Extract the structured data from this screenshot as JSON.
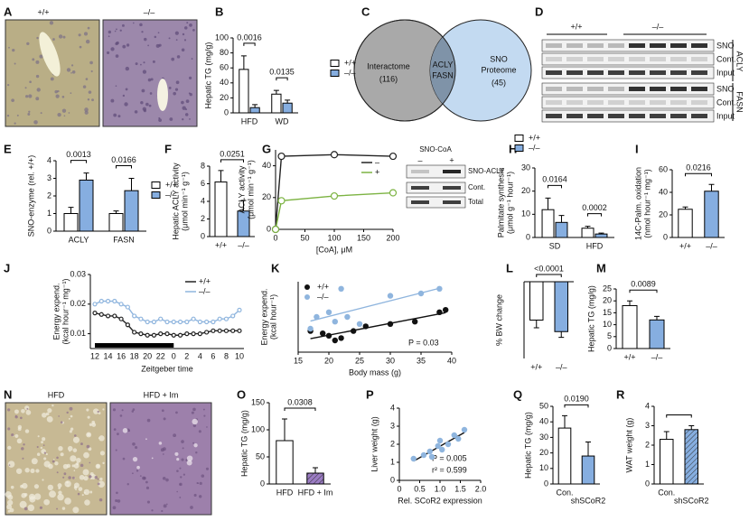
{
  "panel_A": {
    "letter": "A",
    "labels": [
      "+/+",
      "–/–"
    ]
  },
  "panel_C": {
    "letter": "C",
    "left": "Interactome",
    "left_count": "(116)",
    "overlap": [
      "ACLY",
      "FASN"
    ],
    "right": [
      "SNO",
      "Proteome"
    ],
    "right_count": "(45)"
  },
  "panel_D": {
    "letter": "D",
    "groups": [
      "+/+",
      "–/–"
    ],
    "rows": [
      "SNO",
      "Cont.",
      "Input",
      "SNO",
      "Cont.",
      "Input"
    ],
    "proteins": [
      "ACLY",
      "FASN"
    ]
  },
  "panel_G_blot": {
    "title": "SNO-CoA",
    "lanes": [
      "–",
      "+"
    ],
    "rows": [
      "SNO-ACLY",
      "Cont.",
      "Total"
    ]
  },
  "panel_N": {
    "letter": "N",
    "labels": [
      "HFD",
      "HFD + Im"
    ]
  },
  "chart_data": [
    {
      "type": "bar",
      "letter": "B",
      "ylabel": [
        "Hepatic TG (mg/g)"
      ],
      "categories": [
        "HFD",
        "WD"
      ],
      "series": [
        {
          "name": "+/+",
          "color": "#ffffff",
          "values": [
            58,
            25
          ],
          "errors": [
            18,
            5
          ]
        },
        {
          "name": "–/–",
          "color": "#86aee0",
          "values": [
            7,
            13
          ],
          "errors": [
            4,
            4
          ]
        }
      ],
      "ylim": [
        0,
        100
      ],
      "yticks": [
        0,
        20,
        40,
        60,
        80,
        100
      ],
      "pvalues": [
        "0.0016",
        "0.0135"
      ]
    },
    {
      "type": "bar",
      "letter": "E",
      "ylabel": [
        "SNO-enzyme (rel. +/+)"
      ],
      "categories": [
        "ACLY",
        "FASN"
      ],
      "series": [
        {
          "name": "+/+",
          "color": "#ffffff",
          "values": [
            1.0,
            1.0
          ],
          "errors": [
            0.35,
            0.15
          ]
        },
        {
          "name": "–/–",
          "color": "#86aee0",
          "values": [
            2.9,
            2.3
          ],
          "errors": [
            0.4,
            0.7
          ]
        }
      ],
      "ylim": [
        0,
        4
      ],
      "yticks": [
        0,
        1,
        2,
        3,
        4
      ],
      "pvalues": [
        "0.0013",
        "0.0166"
      ]
    },
    {
      "type": "bar",
      "letter": "F",
      "ylabel": [
        "Hepatic ACLY activity",
        "(μmol min⁻¹ g⁻¹)"
      ],
      "categories": [
        "+/+",
        "–/–"
      ],
      "values": [
        6.2,
        2.9
      ],
      "errors": [
        1.3,
        1.2
      ],
      "colors": [
        "#ffffff",
        "#86aee0"
      ],
      "ylim": [
        0,
        8
      ],
      "yticks": [
        0,
        2,
        4,
        6,
        8
      ],
      "pvalue": "0.0251"
    },
    {
      "type": "line",
      "letter": "G",
      "ylabel": [
        "ACLY activity",
        "(μmol min⁻¹ g⁻¹)"
      ],
      "xlabel": "[CoA], μM",
      "x": [
        0,
        10,
        100,
        200
      ],
      "series": [
        {
          "name": "–",
          "color": "#222222",
          "values": [
            0,
            46,
            47,
            46
          ]
        },
        {
          "name": "+",
          "color": "#7cb342",
          "values": [
            0,
            18,
            21,
            23
          ]
        }
      ],
      "xlim": [
        0,
        200
      ],
      "xticks": [
        0,
        50,
        100,
        150,
        200
      ],
      "ylim": [
        0,
        50
      ],
      "yticks": [
        0,
        20,
        40
      ]
    },
    {
      "type": "bar",
      "letter": "H",
      "ylabel": [
        "Palmitate synthesis",
        "(μmol g⁻¹ hour⁻¹)"
      ],
      "categories": [
        "SD",
        "HFD"
      ],
      "series": [
        {
          "name": "+/+",
          "color": "#ffffff",
          "values": [
            12,
            4
          ],
          "errors": [
            5,
            0.8
          ]
        },
        {
          "name": "–/–",
          "color": "#86aee0",
          "values": [
            6.5,
            1.5
          ],
          "errors": [
            3,
            0.4
          ]
        }
      ],
      "ylim": [
        0,
        30
      ],
      "yticks": [
        0,
        10,
        20,
        30
      ],
      "pvalues": [
        "0.0164",
        "0.0002"
      ]
    },
    {
      "type": "bar",
      "letter": "I",
      "ylabel": [
        "14C-Palm. oxidation",
        "(nmol hour⁻¹ mg⁻¹)"
      ],
      "categories": [
        "+/+",
        "–/–"
      ],
      "values": [
        25,
        41
      ],
      "errors": [
        2,
        6
      ],
      "colors": [
        "#ffffff",
        "#86aee0"
      ],
      "ylim": [
        0,
        60
      ],
      "yticks": [
        0,
        20,
        40,
        60
      ],
      "pvalue": "0.0216"
    },
    {
      "type": "line",
      "letter": "J",
      "ylabel": [
        "Energy expend.",
        "(kcal hour⁻¹ mg⁻¹)"
      ],
      "xlabel": "Zeitgeber time",
      "categories": [
        "12",
        null,
        "14",
        null,
        "16",
        null,
        "18",
        null,
        "20",
        null,
        "22",
        null,
        "0",
        null,
        "2",
        null,
        "4",
        null,
        "6",
        null,
        "8",
        null,
        "10"
      ],
      "series": [
        {
          "name": "+/+",
          "color": "#222222",
          "values": [
            0.017,
            0.0165,
            0.016,
            0.016,
            0.015,
            0.013,
            0.0105,
            0.01,
            0.0095,
            0.0095,
            0.01,
            0.01,
            0.0095,
            0.0095,
            0.01,
            0.01,
            0.01,
            0.0105,
            0.011,
            0.011,
            0.011,
            0.011,
            0.011
          ]
        },
        {
          "name": "–/–",
          "color": "#8fb5de",
          "values": [
            0.02,
            0.021,
            0.021,
            0.021,
            0.02,
            0.019,
            0.016,
            0.015,
            0.014,
            0.014,
            0.015,
            0.014,
            0.014,
            0.014,
            0.014,
            0.015,
            0.014,
            0.014,
            0.014,
            0.015,
            0.015,
            0.016,
            0.018
          ]
        }
      ],
      "ylim": [
        0.005,
        0.03
      ],
      "yticks": [
        0.01,
        0.02,
        0.03
      ]
    },
    {
      "type": "scatter",
      "letter": "K",
      "ylabel": [
        "Energy expend.",
        "(kcal hour⁻¹)"
      ],
      "xlabel": "Body mass (g)",
      "series": [
        {
          "name": "+/+",
          "color": "#111111",
          "x": [
            17,
            19,
            20,
            21,
            22,
            24,
            26,
            30,
            34,
            38,
            39
          ],
          "values": [
            0.34,
            0.33,
            0.32,
            0.3,
            0.31,
            0.34,
            0.36,
            0.37,
            0.38,
            0.42,
            0.43
          ]
        },
        {
          "name": "–/–",
          "color": "#8fb5de",
          "x": [
            17,
            18,
            20,
            21,
            22,
            23,
            25,
            30,
            35,
            38
          ],
          "values": [
            0.35,
            0.4,
            0.42,
            0.38,
            0.52,
            0.4,
            0.37,
            0.49,
            0.5,
            0.52
          ]
        }
      ],
      "xlim": [
        15,
        40
      ],
      "xticks": [
        15,
        20,
        25,
        30,
        35,
        40
      ],
      "ylim": [
        0.25,
        0.55
      ],
      "annotations": [
        "P = 0.03"
      ]
    },
    {
      "type": "bar",
      "letter": "L",
      "ylabel": [
        "% BW change"
      ],
      "categories": [
        "+/+",
        "–/–"
      ],
      "values": [
        -10,
        -13
      ],
      "errors": [
        2,
        1.5
      ],
      "colors": [
        "#ffffff",
        "#86aee0"
      ],
      "ylim": [
        -20,
        0
      ],
      "pvalue": "<0.0001"
    },
    {
      "type": "bar",
      "letter": "M",
      "ylabel": [
        "Hepatic TG (mg/g)"
      ],
      "categories": [
        "+/+",
        "–/–"
      ],
      "values": [
        18,
        12
      ],
      "errors": [
        2,
        1.5
      ],
      "colors": [
        "#ffffff",
        "#86aee0"
      ],
      "ylim": [
        0,
        25
      ],
      "yticks": [
        0,
        5,
        10,
        15,
        20,
        25
      ],
      "pvalue": "0.0089"
    },
    {
      "type": "bar",
      "letter": "O",
      "ylabel": [
        "Hepatic TG (mg/g)"
      ],
      "categories": [
        "HFD",
        "HFD + Im"
      ],
      "values": [
        80,
        20
      ],
      "errors": [
        40,
        10
      ],
      "colors": [
        "#ffffff",
        "#9b7cc4"
      ],
      "hatched": [
        false,
        true
      ],
      "ylim": [
        0,
        150
      ],
      "yticks": [
        0,
        50,
        100,
        150
      ],
      "pvalue": "0.0308"
    },
    {
      "type": "scatter",
      "letter": "P",
      "ylabel": [
        "Liver weight (g)"
      ],
      "xlabel": "Rel. SCoR2 expression",
      "x": [
        0.35,
        0.6,
        0.75,
        0.8,
        0.95,
        1.0,
        1.05,
        1.2,
        1.35,
        1.45,
        1.6
      ],
      "values": [
        1.2,
        1.4,
        1.6,
        1.3,
        1.9,
        2.2,
        1.7,
        2.0,
        2.5,
        2.3,
        2.8
      ],
      "color": "#8fb5de",
      "xlim": [
        0,
        2
      ],
      "xticks": [
        0,
        0.5,
        {
          "value": 1,
          "label": "1.0"
        },
        1.5,
        {
          "value": 2,
          "label": "2.0"
        }
      ],
      "ylim": [
        0,
        4
      ],
      "yticks": [
        0,
        1,
        2,
        3,
        4
      ],
      "annotations": [
        "P = 0.005",
        "r² = 0.599"
      ]
    },
    {
      "type": "bar",
      "letter": "Q",
      "ylabel": [
        "Hepatic TG (mg/g)"
      ],
      "categories": [
        "Con.",
        "shSCoR2"
      ],
      "values": [
        36,
        18
      ],
      "errors": [
        8,
        9
      ],
      "colors": [
        "#ffffff",
        "#86aee0"
      ],
      "ylim": [
        0,
        50
      ],
      "yticks": [
        0,
        10,
        20,
        30,
        40,
        50
      ],
      "pvalue": "0.0190"
    },
    {
      "type": "bar",
      "letter": "R",
      "ylabel": [
        "WAT weight (g)"
      ],
      "categories": [
        "Con.",
        "shSCoR2"
      ],
      "values": [
        2.3,
        2.8
      ],
      "errors": [
        0.4,
        0.2
      ],
      "colors": [
        "#ffffff",
        "#86aee0"
      ],
      "hatched": [
        false,
        true
      ],
      "ylim": [
        0,
        4
      ],
      "yticks": [
        0,
        1,
        2,
        3,
        4
      ],
      "bracket": true
    }
  ]
}
